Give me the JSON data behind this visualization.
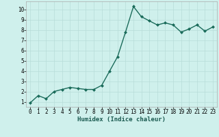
{
  "x": [
    0,
    1,
    2,
    3,
    4,
    5,
    6,
    7,
    8,
    9,
    10,
    11,
    12,
    13,
    14,
    15,
    16,
    17,
    18,
    19,
    20,
    21,
    22,
    23
  ],
  "y": [
    0.9,
    1.6,
    1.3,
    2.0,
    2.2,
    2.4,
    2.3,
    2.2,
    2.2,
    2.6,
    4.0,
    5.4,
    7.8,
    10.3,
    9.3,
    8.9,
    8.5,
    8.7,
    8.5,
    7.8,
    8.1,
    8.5,
    7.9,
    8.3
  ],
  "line_color": "#1a6b5a",
  "marker": "D",
  "marker_size": 2.0,
  "bg_color": "#cff0ec",
  "grid_color": "#b8dcd8",
  "xlabel": "Humidex (Indice chaleur)",
  "xlim": [
    -0.5,
    23.5
  ],
  "ylim": [
    0.5,
    10.8
  ],
  "yticks": [
    1,
    2,
    3,
    4,
    5,
    6,
    7,
    8,
    9,
    10
  ],
  "xticks": [
    0,
    1,
    2,
    3,
    4,
    5,
    6,
    7,
    8,
    9,
    10,
    11,
    12,
    13,
    14,
    15,
    16,
    17,
    18,
    19,
    20,
    21,
    22,
    23
  ],
  "tick_fontsize": 5.5,
  "label_fontsize": 6.5,
  "line_width": 1.0
}
